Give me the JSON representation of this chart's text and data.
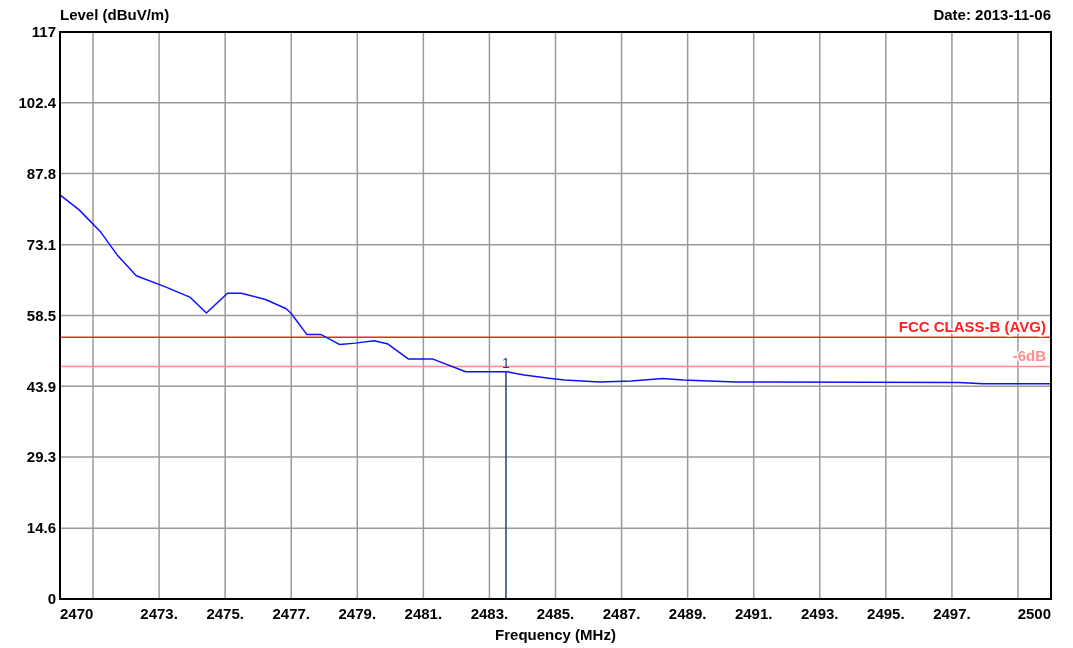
{
  "chart_data": {
    "type": "line",
    "xlabel": "Frequency (MHz)",
    "ylabel": "Level (dBuV/m)",
    "annotations": [
      "Date: 2013-11-06",
      {
        "text": "1",
        "x": 2483.5,
        "y": 46.9
      }
    ],
    "xlim": [
      2470,
      2500
    ],
    "xticks": [
      {
        "value": 2470,
        "label": "2470"
      },
      {
        "value": 2471,
        "label": null
      },
      {
        "value": 2473,
        "label": "2473."
      },
      {
        "value": 2475,
        "label": "2475."
      },
      {
        "value": 2477,
        "label": "2477."
      },
      {
        "value": 2479,
        "label": "2479."
      },
      {
        "value": 2481,
        "label": "2481."
      },
      {
        "value": 2483,
        "label": "2483."
      },
      {
        "value": 2485,
        "label": "2485."
      },
      {
        "value": 2487,
        "label": "2487."
      },
      {
        "value": 2489,
        "label": "2489."
      },
      {
        "value": 2491,
        "label": "2491."
      },
      {
        "value": 2493,
        "label": "2493."
      },
      {
        "value": 2495,
        "label": "2495."
      },
      {
        "value": 2497,
        "label": "2497."
      },
      {
        "value": 2499,
        "label": null
      },
      {
        "value": 2500,
        "label": "2500"
      }
    ],
    "ylim": [
      0,
      117
    ],
    "yticks": [
      0,
      14.6,
      29.3,
      43.9,
      58.5,
      73.1,
      87.8,
      102.4,
      117
    ],
    "grid": true,
    "marker": "none",
    "line_style": "solid",
    "ref_lines": [
      {
        "axis": "y",
        "value": 54,
        "label": "FCC CLASS-B (AVG)",
        "color": "#ff2020"
      },
      {
        "axis": "y",
        "value": 48,
        "label": "-6dB",
        "color": "#ff8c8c"
      },
      {
        "axis": "x",
        "value": 2483.5,
        "color": "#1f4570"
      }
    ],
    "series": [
      {
        "color": "#1010ff",
        "x": [
          2470,
          2470.58,
          2471.21,
          2471.73,
          2472.31,
          2473.19,
          2473.93,
          2474.43,
          2475.07,
          2475.49,
          2476.22,
          2476.85,
          2477.0,
          2477.47,
          2477.89,
          2478.47,
          2478.94,
          2479.51,
          2479.93,
          2480.55,
          2481.29,
          2482.28,
          2483.53,
          2484.05,
          2484.86,
          2485.28,
          2486.34,
          2487.29,
          2488.24,
          2488.87,
          2490.45,
          2497.2,
          2497.94,
          2500
        ],
        "values": [
          83.4,
          80.3,
          75.9,
          71.0,
          66.7,
          64.4,
          62.3,
          59.0,
          63.1,
          63.1,
          61.8,
          59.9,
          58.9,
          54.6,
          54.6,
          52.5,
          52.8,
          53.3,
          52.6,
          49.5,
          49.5,
          46.9,
          46.9,
          46.2,
          45.5,
          45.2,
          44.8,
          45.0,
          45.5,
          45.2,
          44.8,
          44.7,
          44.4,
          44.4
        ]
      }
    ]
  }
}
